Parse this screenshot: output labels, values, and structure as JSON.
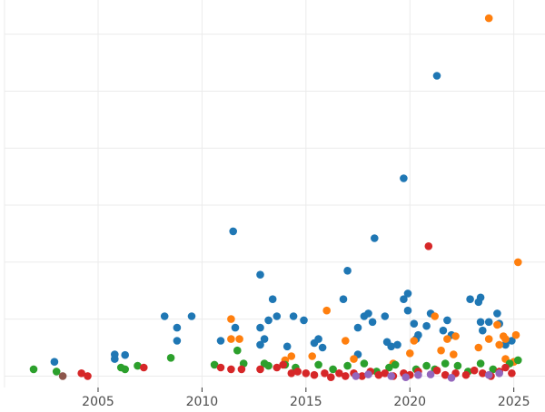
{
  "chart_data": {
    "type": "scatter",
    "title": "",
    "xlabel": "",
    "ylabel": "",
    "xlim": [
      2000.5,
      2026.5
    ],
    "ylim": [
      -0.2,
      6.6
    ],
    "x_ticks": [
      2005,
      2010,
      2015,
      2020,
      2025
    ],
    "x_tick_labels": [
      "2005",
      "2010",
      "2015",
      "2020",
      "2025"
    ],
    "y_gridlines": [
      0,
      1,
      2,
      3,
      4,
      5,
      6
    ],
    "grid": true,
    "legend": "none",
    "series": [
      {
        "color": "#1f77b4",
        "points": [
          [
            2002.9,
            0.25
          ],
          [
            2005.8,
            0.3
          ],
          [
            2005.8,
            0.38
          ],
          [
            2006.3,
            0.37
          ],
          [
            2008.2,
            1.05
          ],
          [
            2008.8,
            0.85
          ],
          [
            2008.8,
            0.62
          ],
          [
            2009.5,
            1.05
          ],
          [
            2010.9,
            0.62
          ],
          [
            2011.5,
            2.54
          ],
          [
            2011.6,
            0.85
          ],
          [
            2012.8,
            1.78
          ],
          [
            2012.8,
            0.85
          ],
          [
            2012.8,
            0.55
          ],
          [
            2013.0,
            0.65
          ],
          [
            2013.2,
            0.98
          ],
          [
            2013.4,
            1.35
          ],
          [
            2013.6,
            1.05
          ],
          [
            2014.1,
            0.52
          ],
          [
            2014.4,
            1.05
          ],
          [
            2014.9,
            0.98
          ],
          [
            2015.4,
            0.58
          ],
          [
            2015.6,
            0.65
          ],
          [
            2015.8,
            0.5
          ],
          [
            2016.8,
            1.35
          ],
          [
            2017.0,
            1.85
          ],
          [
            2017.5,
            0.38
          ],
          [
            2017.5,
            0.85
          ],
          [
            2017.8,
            1.05
          ],
          [
            2018.0,
            1.1
          ],
          [
            2018.2,
            0.95
          ],
          [
            2018.3,
            2.42
          ],
          [
            2018.8,
            1.05
          ],
          [
            2018.9,
            0.6
          ],
          [
            2019.1,
            0.52
          ],
          [
            2019.4,
            0.55
          ],
          [
            2019.7,
            1.35
          ],
          [
            2019.7,
            3.47
          ],
          [
            2019.9,
            1.45
          ],
          [
            2019.9,
            1.15
          ],
          [
            2020.2,
            0.92
          ],
          [
            2020.3,
            0.65
          ],
          [
            2020.4,
            0.72
          ],
          [
            2020.8,
            0.88
          ],
          [
            2021.0,
            1.1
          ],
          [
            2021.3,
            5.27
          ],
          [
            2021.6,
            0.8
          ],
          [
            2021.8,
            0.98
          ],
          [
            2022.0,
            0.72
          ],
          [
            2022.9,
            1.35
          ],
          [
            2023.3,
            1.3
          ],
          [
            2023.4,
            1.38
          ],
          [
            2023.4,
            0.95
          ],
          [
            2023.5,
            0.8
          ],
          [
            2023.8,
            0.95
          ],
          [
            2024.2,
            1.1
          ],
          [
            2024.3,
            0.92
          ],
          [
            2024.6,
            0.55
          ],
          [
            2024.9,
            0.62
          ]
        ]
      },
      {
        "color": "#ff7f0e",
        "points": [
          [
            2011.4,
            1.0
          ],
          [
            2011.4,
            0.65
          ],
          [
            2011.8,
            0.65
          ],
          [
            2014.0,
            0.28
          ],
          [
            2014.3,
            0.35
          ],
          [
            2015.3,
            0.35
          ],
          [
            2016.0,
            1.15
          ],
          [
            2016.9,
            0.62
          ],
          [
            2017.3,
            0.3
          ],
          [
            2019.2,
            0.22
          ],
          [
            2020.0,
            0.4
          ],
          [
            2020.2,
            0.62
          ],
          [
            2021.2,
            1.05
          ],
          [
            2021.5,
            0.45
          ],
          [
            2021.8,
            0.65
          ],
          [
            2022.1,
            0.38
          ],
          [
            2022.2,
            0.7
          ],
          [
            2023.3,
            0.5
          ],
          [
            2023.8,
            6.28
          ],
          [
            2023.8,
            0.65
          ],
          [
            2024.2,
            0.9
          ],
          [
            2024.3,
            0.55
          ],
          [
            2024.5,
            0.7
          ],
          [
            2024.6,
            0.65
          ],
          [
            2025.1,
            0.72
          ],
          [
            2025.2,
            2.0
          ],
          [
            2024.6,
            0.3
          ],
          [
            2025.0,
            0.25
          ]
        ]
      },
      {
        "color": "#2ca02c",
        "points": [
          [
            2001.9,
            0.12
          ],
          [
            2003.0,
            0.08
          ],
          [
            2006.1,
            0.15
          ],
          [
            2006.3,
            0.12
          ],
          [
            2006.9,
            0.18
          ],
          [
            2008.5,
            0.32
          ],
          [
            2010.6,
            0.2
          ],
          [
            2011.7,
            0.45
          ],
          [
            2012.0,
            0.22
          ],
          [
            2013.0,
            0.22
          ],
          [
            2013.2,
            0.18
          ],
          [
            2014.0,
            0.2
          ],
          [
            2014.5,
            0.15
          ],
          [
            2015.6,
            0.2
          ],
          [
            2016.3,
            0.12
          ],
          [
            2017.0,
            0.18
          ],
          [
            2017.8,
            0.22
          ],
          [
            2018.4,
            0.08
          ],
          [
            2019.0,
            0.15
          ],
          [
            2019.3,
            0.2
          ],
          [
            2020.3,
            0.12
          ],
          [
            2020.8,
            0.18
          ],
          [
            2021.2,
            0.12
          ],
          [
            2021.7,
            0.22
          ],
          [
            2022.3,
            0.18
          ],
          [
            2022.8,
            0.08
          ],
          [
            2023.4,
            0.22
          ],
          [
            2024.0,
            0.12
          ],
          [
            2024.8,
            0.22
          ],
          [
            2025.2,
            0.28
          ]
        ]
      },
      {
        "color": "#d62728",
        "points": [
          [
            2004.2,
            0.05
          ],
          [
            2004.5,
            0.0
          ],
          [
            2007.2,
            0.15
          ],
          [
            2010.9,
            0.15
          ],
          [
            2011.4,
            0.12
          ],
          [
            2011.9,
            0.12
          ],
          [
            2012.8,
            0.12
          ],
          [
            2013.6,
            0.15
          ],
          [
            2013.9,
            0.2
          ],
          [
            2014.3,
            0.05
          ],
          [
            2014.6,
            0.08
          ],
          [
            2015.0,
            0.05
          ],
          [
            2015.4,
            0.02
          ],
          [
            2015.9,
            0.05
          ],
          [
            2016.2,
            -0.02
          ],
          [
            2016.6,
            0.05
          ],
          [
            2016.9,
            0.0
          ],
          [
            2017.3,
            0.05
          ],
          [
            2017.7,
            0.0
          ],
          [
            2018.1,
            0.08
          ],
          [
            2018.5,
            0.02
          ],
          [
            2018.8,
            0.05
          ],
          [
            2019.2,
            0.0
          ],
          [
            2019.7,
            0.05
          ],
          [
            2020.0,
            0.02
          ],
          [
            2020.4,
            0.08
          ],
          [
            2020.9,
            2.28
          ],
          [
            2021.3,
            0.1
          ],
          [
            2021.7,
            0.02
          ],
          [
            2022.2,
            0.05
          ],
          [
            2022.7,
            0.02
          ],
          [
            2023.1,
            0.1
          ],
          [
            2023.5,
            0.05
          ],
          [
            2023.9,
            0.0
          ],
          [
            2024.3,
            0.08
          ],
          [
            2024.6,
            0.15
          ],
          [
            2024.9,
            0.05
          ]
        ]
      },
      {
        "color": "#9467bd",
        "points": [
          [
            2017.4,
            0.0
          ],
          [
            2018.0,
            0.03
          ],
          [
            2019.1,
            0.0
          ],
          [
            2019.8,
            -0.02
          ],
          [
            2020.4,
            0.02
          ],
          [
            2021.0,
            0.03
          ],
          [
            2022.0,
            -0.03
          ],
          [
            2023.8,
            0.02
          ],
          [
            2024.3,
            0.05
          ]
        ]
      },
      {
        "color": "#8c564b",
        "points": [
          [
            2003.3,
            0.0
          ]
        ]
      }
    ]
  }
}
